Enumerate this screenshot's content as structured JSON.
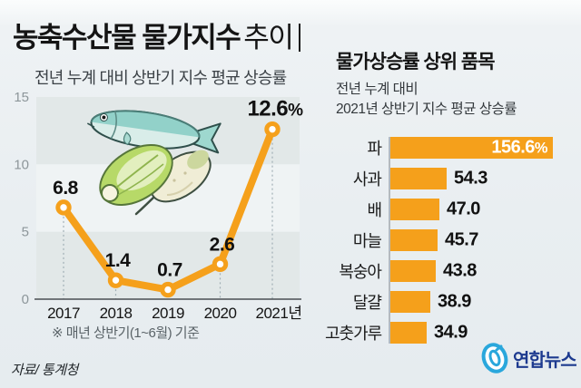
{
  "header": {
    "title_bold": "농축수산물 물가지수",
    "title_light": "추이",
    "subtitle": "전년 누계 대비 상반기 지수 평균 상승률"
  },
  "chart_data": [
    {
      "type": "line",
      "x": [
        "2017",
        "2018",
        "2019",
        "2020",
        "2021년"
      ],
      "values": [
        6.8,
        1.4,
        0.7,
        2.6,
        12.6
      ],
      "point_labels": [
        "6.8",
        "1.4",
        "0.7",
        "2.6",
        "12.6%"
      ],
      "ylim": [
        0,
        15
      ],
      "yticks": [
        15,
        10,
        5,
        0
      ],
      "grid": "alternating-horizontal-bands",
      "legend": "none",
      "note": "※ 매년 상반기(1~6월) 기준",
      "line_color": "#F5A01B"
    },
    {
      "type": "bar",
      "orientation": "horizontal",
      "title": "물가상승률 상위 품목",
      "subtitle_line1": "전년 누계 대비",
      "subtitle_line2": "2021년 상반기 지수 평균 상승률",
      "categories": [
        "파",
        "사과",
        "배",
        "마늘",
        "복숭아",
        "달걀",
        "고춧가루"
      ],
      "values": [
        156.6,
        54.3,
        47.0,
        45.7,
        43.8,
        38.9,
        34.9
      ],
      "value_labels": [
        "156.6%",
        "54.3",
        "47.0",
        "45.7",
        "43.8",
        "38.9",
        "34.9"
      ],
      "xlim": [
        0,
        160
      ],
      "bar_color": "#F5A01B"
    }
  ],
  "illustration": {
    "items": [
      "fish",
      "napa-cabbage",
      "radish"
    ]
  },
  "footer": {
    "source": "자료/ 통계청",
    "logo_text": "연합뉴스"
  },
  "colors": {
    "accent_orange": "#F5A01B",
    "stripe_gray": "#E2E8E8",
    "stripe_light": "#EFF3F4",
    "logo_blue": "#2AA7DC",
    "logo_navy": "#1D3A8F"
  }
}
